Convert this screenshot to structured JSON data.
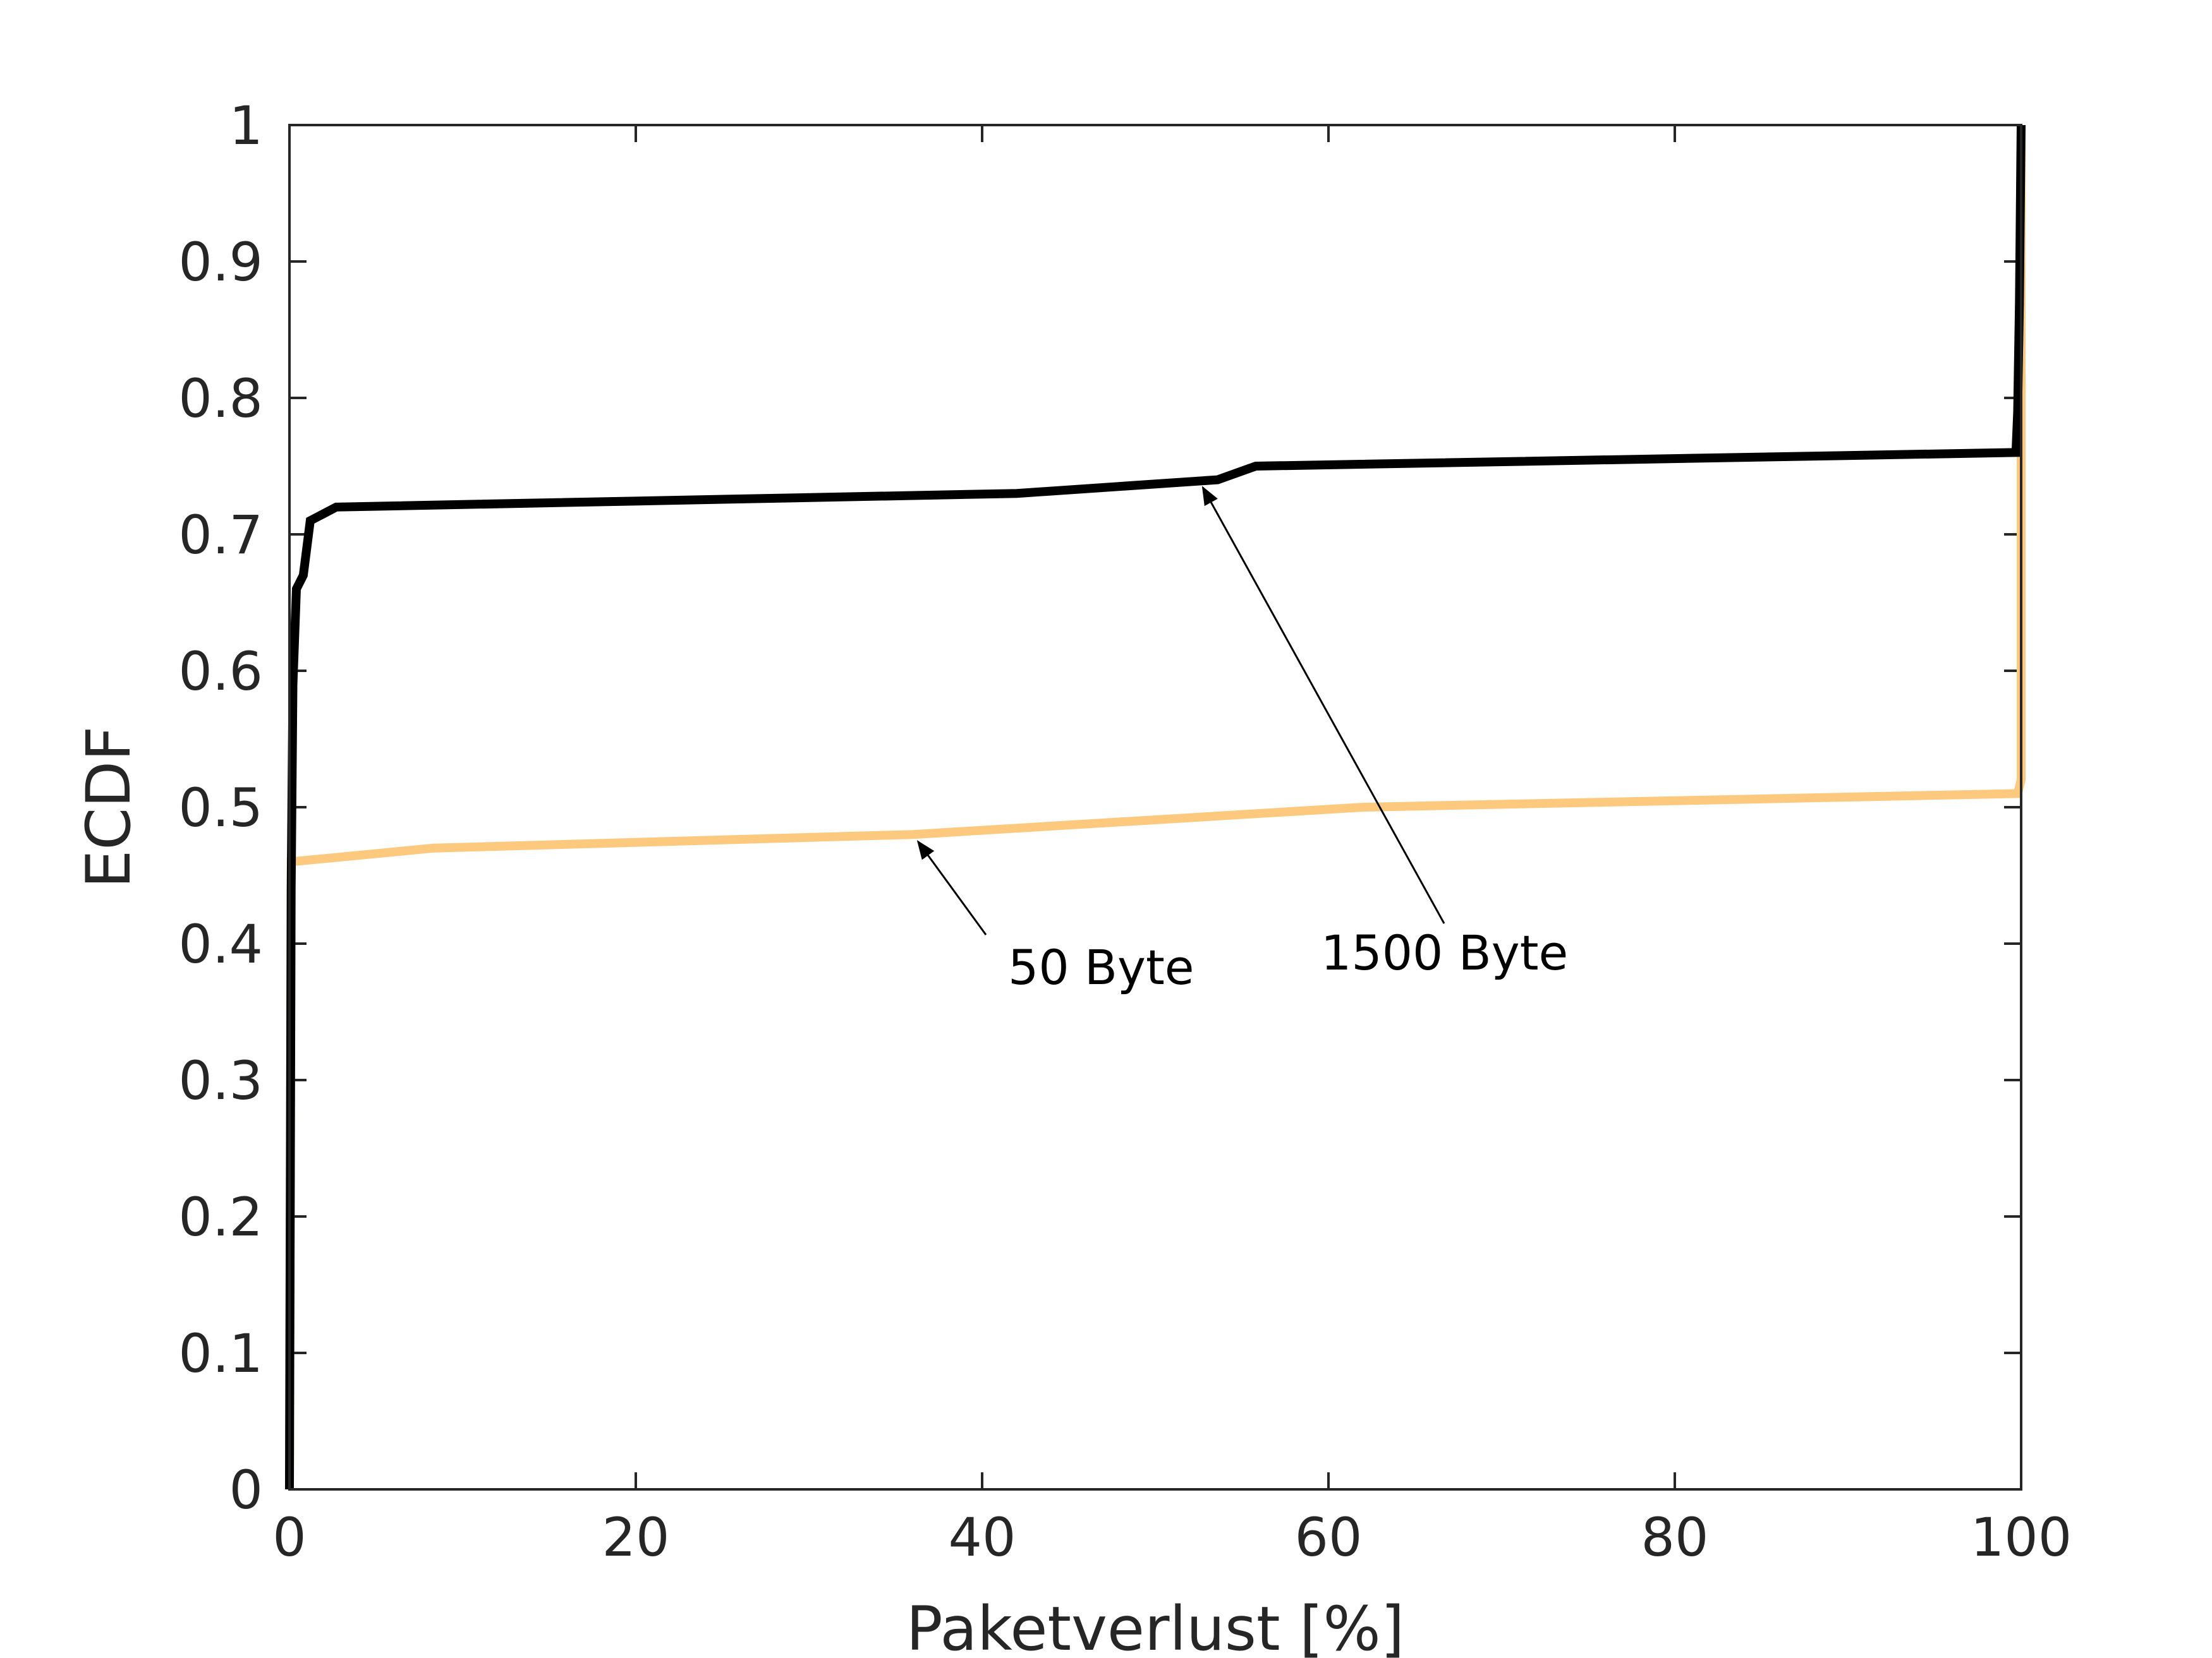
{
  "chart_data": {
    "type": "line",
    "title": "",
    "xlabel": "Paketverlust [%]",
    "ylabel": "ECDF",
    "xlim": [
      0,
      100
    ],
    "ylim": [
      0,
      1
    ],
    "xticks": [
      0,
      20,
      40,
      60,
      80,
      100
    ],
    "xtick_labels": [
      "0",
      "20",
      "40",
      "60",
      "80",
      "100"
    ],
    "yticks": [
      0,
      0.1,
      0.2,
      0.3,
      0.4,
      0.5,
      0.6,
      0.7,
      0.8,
      0.9,
      1
    ],
    "ytick_labels": [
      "0",
      "0.1",
      "0.2",
      "0.3",
      "0.4",
      "0.5",
      "0.6",
      "0.7",
      "0.8",
      "0.9",
      "1"
    ],
    "grid": false,
    "series": [
      {
        "label": "1500 Byte",
        "color": "#000000",
        "points": [
          [
            0,
            0
          ],
          [
            0.1,
            0.44
          ],
          [
            0.2,
            0.59
          ],
          [
            0.4,
            0.66
          ],
          [
            0.8,
            0.67
          ],
          [
            1.2,
            0.71
          ],
          [
            2.7,
            0.72
          ],
          [
            42,
            0.73
          ],
          [
            53.6,
            0.74
          ],
          [
            55.8,
            0.75
          ],
          [
            99.7,
            0.76
          ],
          [
            99.8,
            0.79
          ],
          [
            99.9,
            0.87
          ],
          [
            100,
            1
          ]
        ]
      },
      {
        "label": "50 Byte",
        "color": "#FDC97F",
        "points": [
          [
            0,
            0
          ],
          [
            0.1,
            0.46
          ],
          [
            8.3,
            0.47
          ],
          [
            36,
            0.48
          ],
          [
            62,
            0.5
          ],
          [
            99.8,
            0.51
          ],
          [
            100,
            0.52
          ],
          [
            100,
            1
          ]
        ]
      }
    ],
    "annotations": [
      {
        "text": "50 Byte",
        "target": [
          36,
          0.48
        ]
      },
      {
        "text": "1500 Byte",
        "target": [
          52.5,
          0.74
        ]
      }
    ]
  }
}
